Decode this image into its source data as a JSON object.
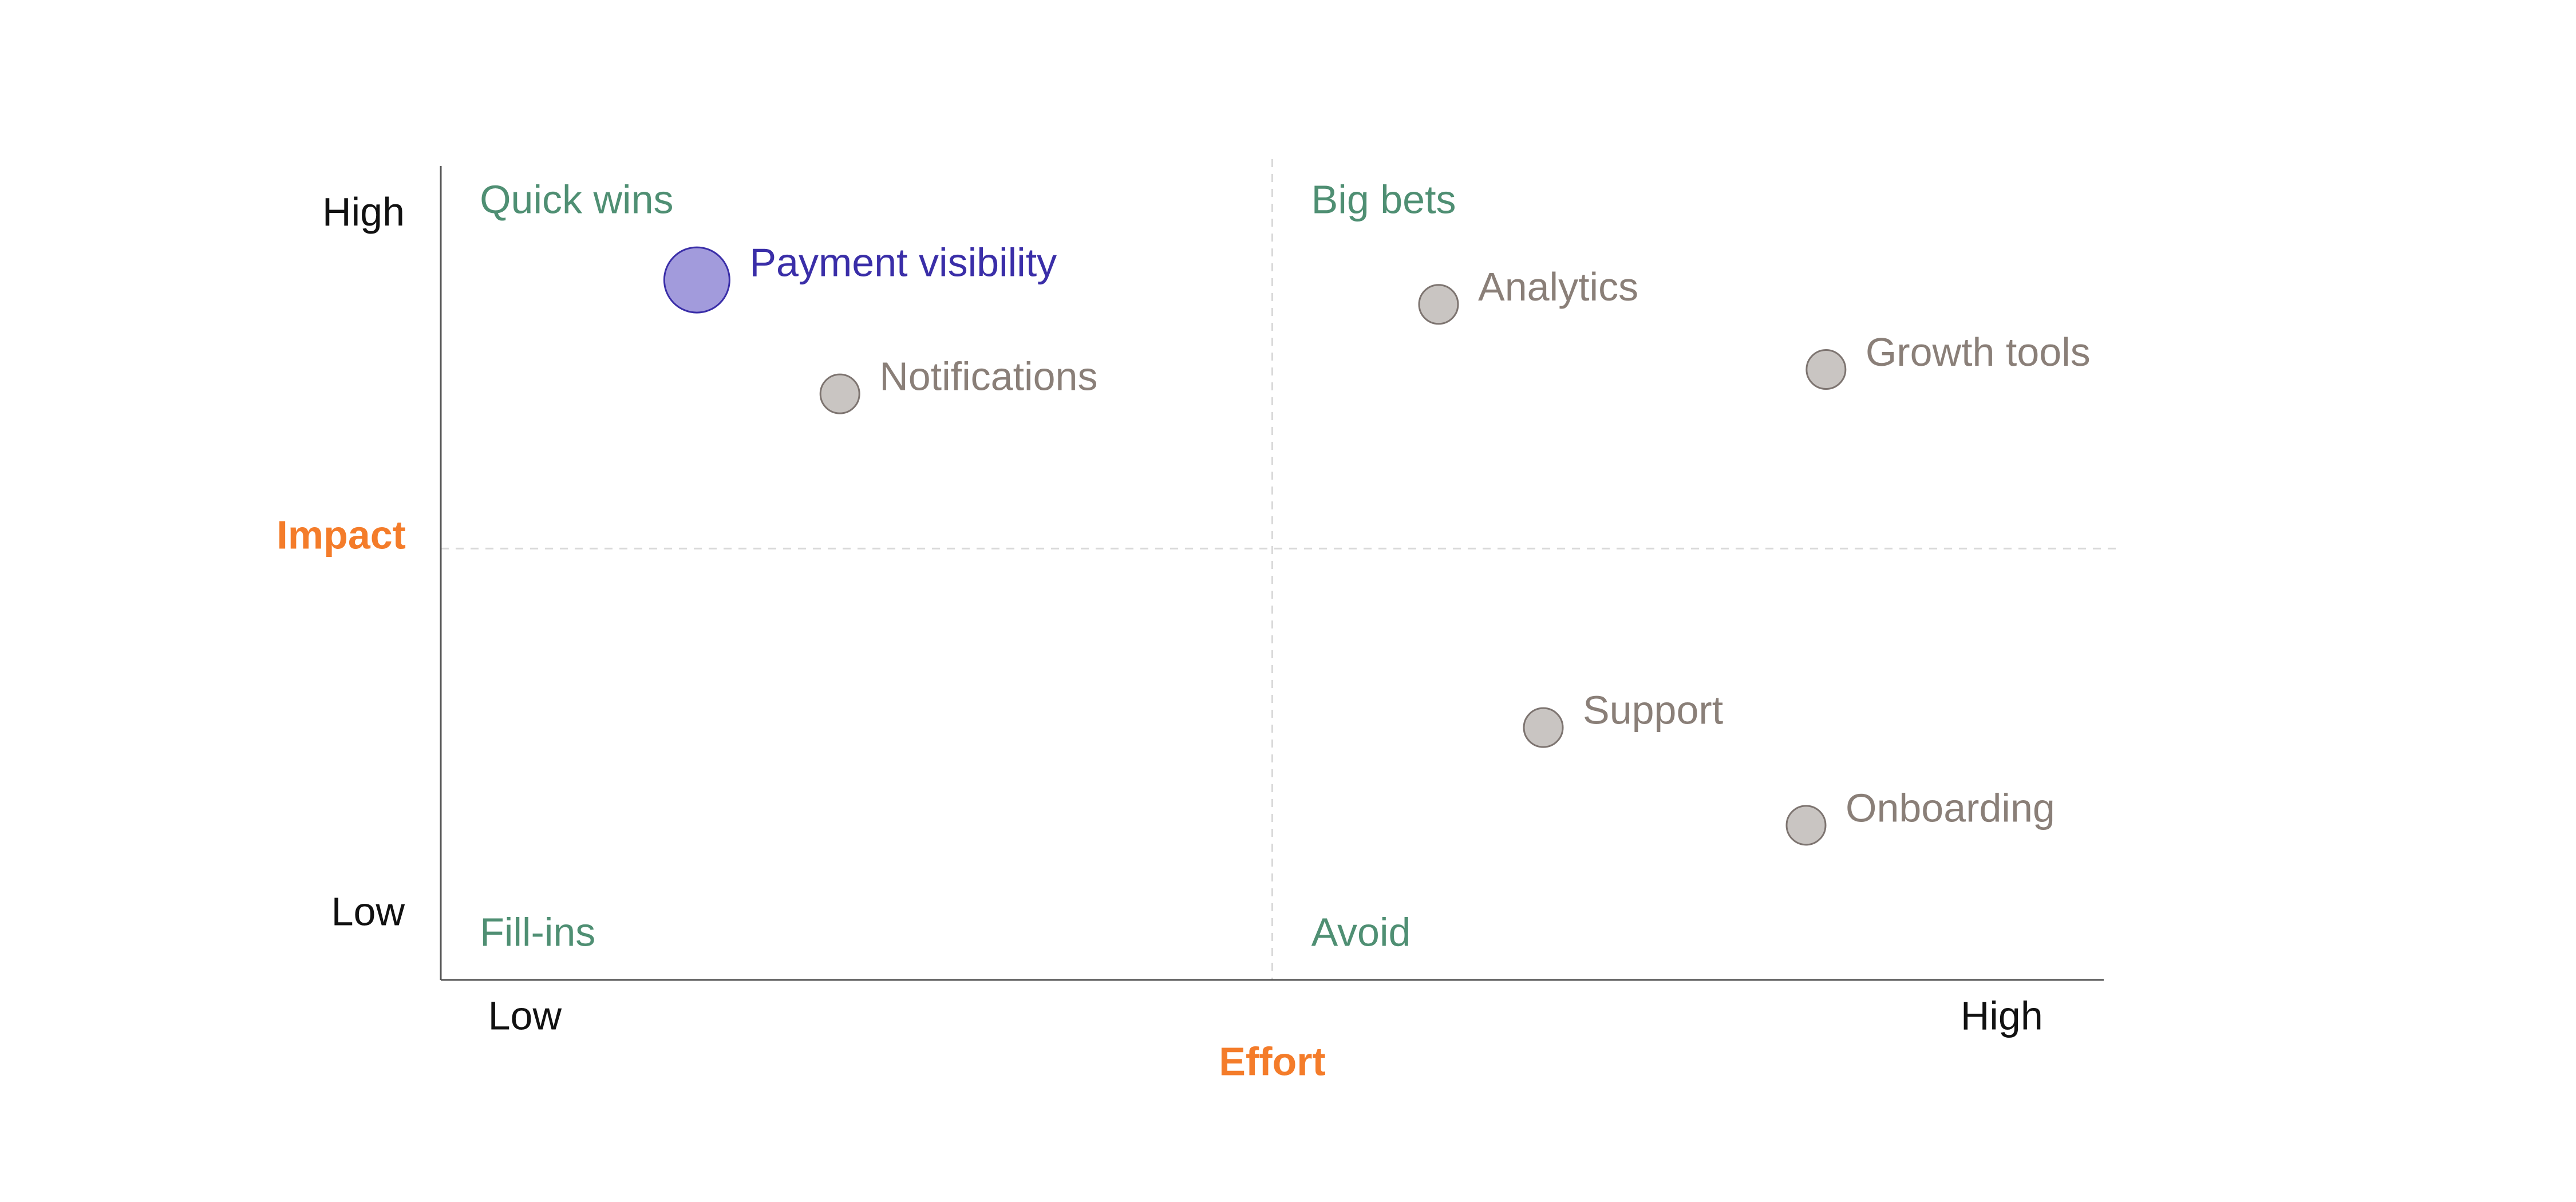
{
  "chart_data": {
    "type": "scatter",
    "title": "",
    "xlabel": "Effort",
    "ylabel": "Impact",
    "xlim": [
      0,
      10
    ],
    "ylim": [
      0,
      10
    ],
    "x_ticks": [
      {
        "value": 0.25,
        "label": "Low"
      },
      {
        "value": 9.6,
        "label": "High"
      }
    ],
    "y_ticks": [
      {
        "value": 0.8,
        "label": "Low"
      },
      {
        "value": 9.4,
        "label": "High"
      }
    ],
    "dividers": {
      "x": 5,
      "y": 5.3
    },
    "grid": false,
    "quadrants": [
      {
        "label": "Quick wins",
        "x": 0.2,
        "y": 9.55
      },
      {
        "label": "Big bets",
        "x": 5.2,
        "y": 9.55
      },
      {
        "label": "Fill-ins",
        "x": 0.2,
        "y": 0.55
      },
      {
        "label": "Avoid",
        "x": 5.2,
        "y": 0.55
      }
    ],
    "points": [
      {
        "label": "Payment visibility",
        "x": 1.54,
        "y": 8.6,
        "highlight": true
      },
      {
        "label": "Notifications",
        "x": 2.4,
        "y": 7.2,
        "highlight": false
      },
      {
        "label": "Analytics",
        "x": 6.0,
        "y": 8.3,
        "highlight": false
      },
      {
        "label": "Growth tools",
        "x": 8.33,
        "y": 7.5,
        "highlight": false
      },
      {
        "label": "Support",
        "x": 6.63,
        "y": 3.1,
        "highlight": false
      },
      {
        "label": "Onboarding",
        "x": 8.21,
        "y": 1.9,
        "highlight": false
      }
    ],
    "colors": {
      "axis_title": "#f47c2a",
      "quadrant_label": "#4f8f73",
      "highlight_fill": "#a29bdc",
      "highlight_stroke": "#3a2ea8",
      "highlight_text": "#3a2ea8",
      "point_fill": "#c9c5c2",
      "point_stroke": "#7d7470",
      "point_text": "#8a7f78",
      "tick_text": "#111111",
      "axis_line": "#555555",
      "divider": "#d9d9d9"
    }
  }
}
